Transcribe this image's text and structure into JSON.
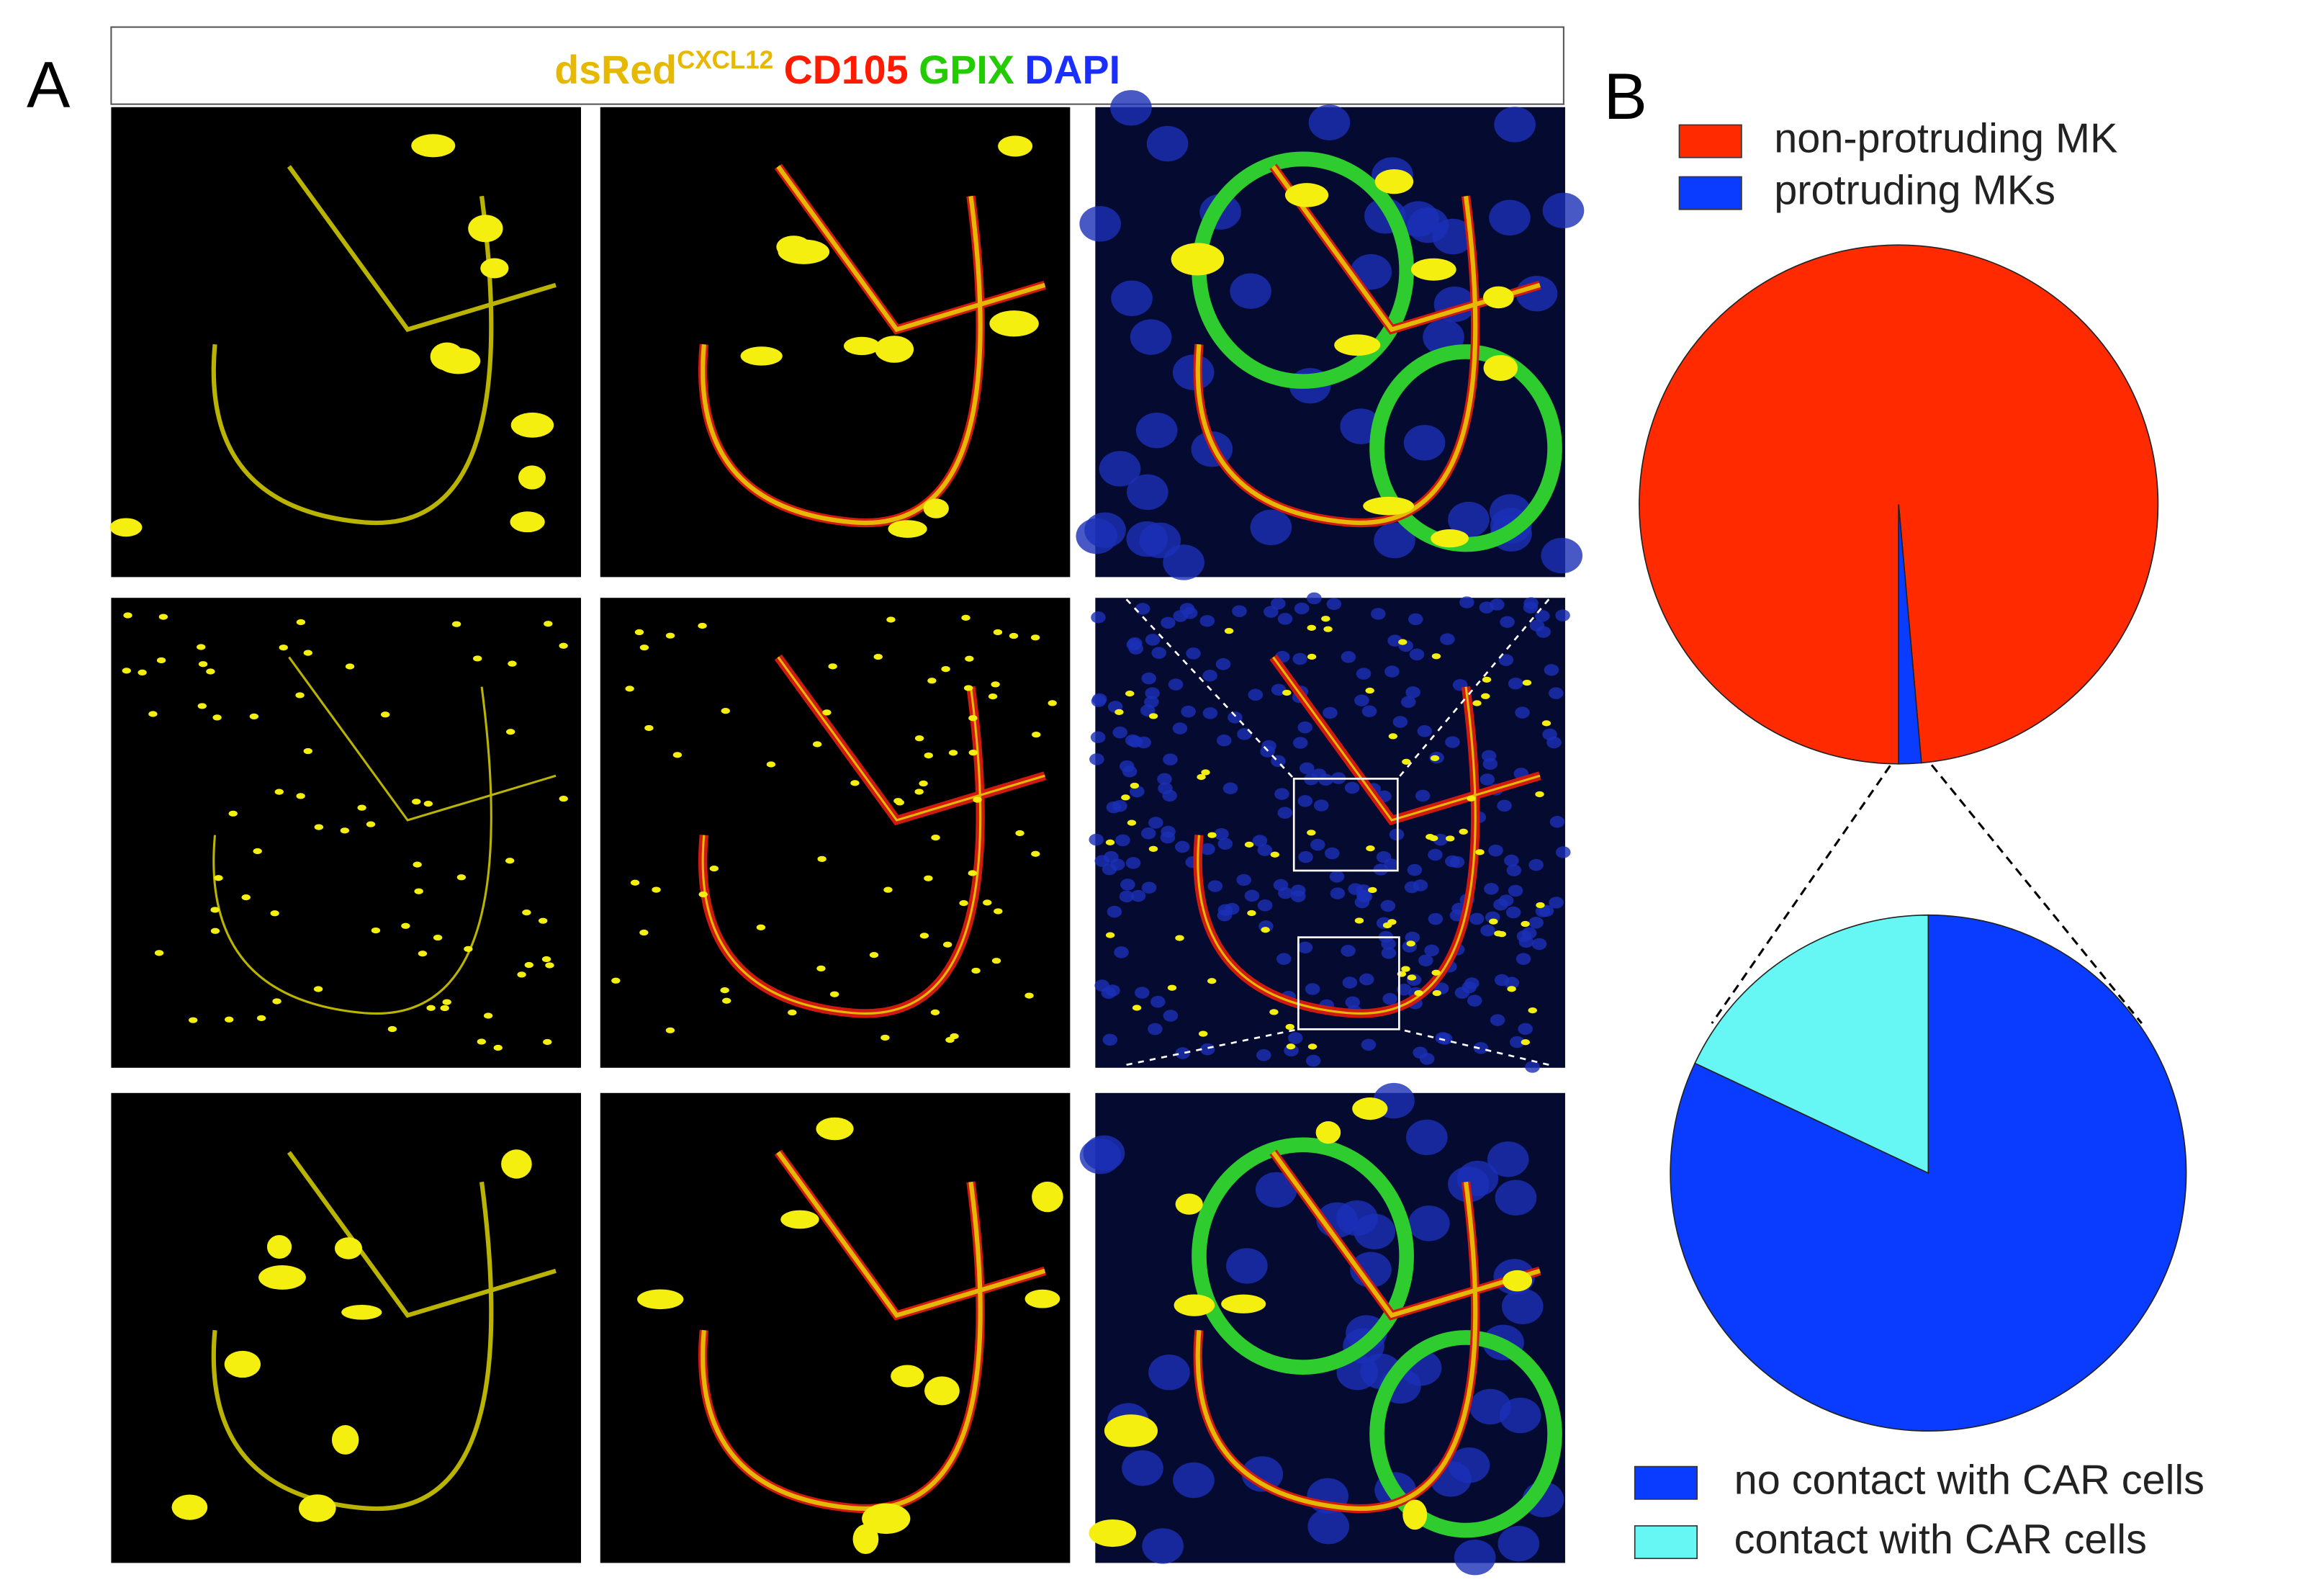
{
  "panel_a_label": "A",
  "panel_b_label": "B",
  "stain_header": {
    "dsred": "dsRed",
    "dsred_superscript": "CXCL12",
    "cd105": "CD105",
    "gpix": "GPIX",
    "dapi": "DAPI"
  },
  "chart_data": [
    {
      "type": "pie",
      "labels": [
        "non-protruding MK",
        "protruding MKs"
      ],
      "values": [
        98.6,
        1.4
      ],
      "colors": [
        "#ff2a00",
        "#0a3cff"
      ],
      "legend": "top"
    },
    {
      "type": "pie",
      "labels": [
        "no contact with CAR cells",
        "contact with CAR cells"
      ],
      "values": [
        82,
        18
      ],
      "colors": [
        "#0a3cff",
        "#66f7f5"
      ],
      "legend": "bottom"
    }
  ]
}
